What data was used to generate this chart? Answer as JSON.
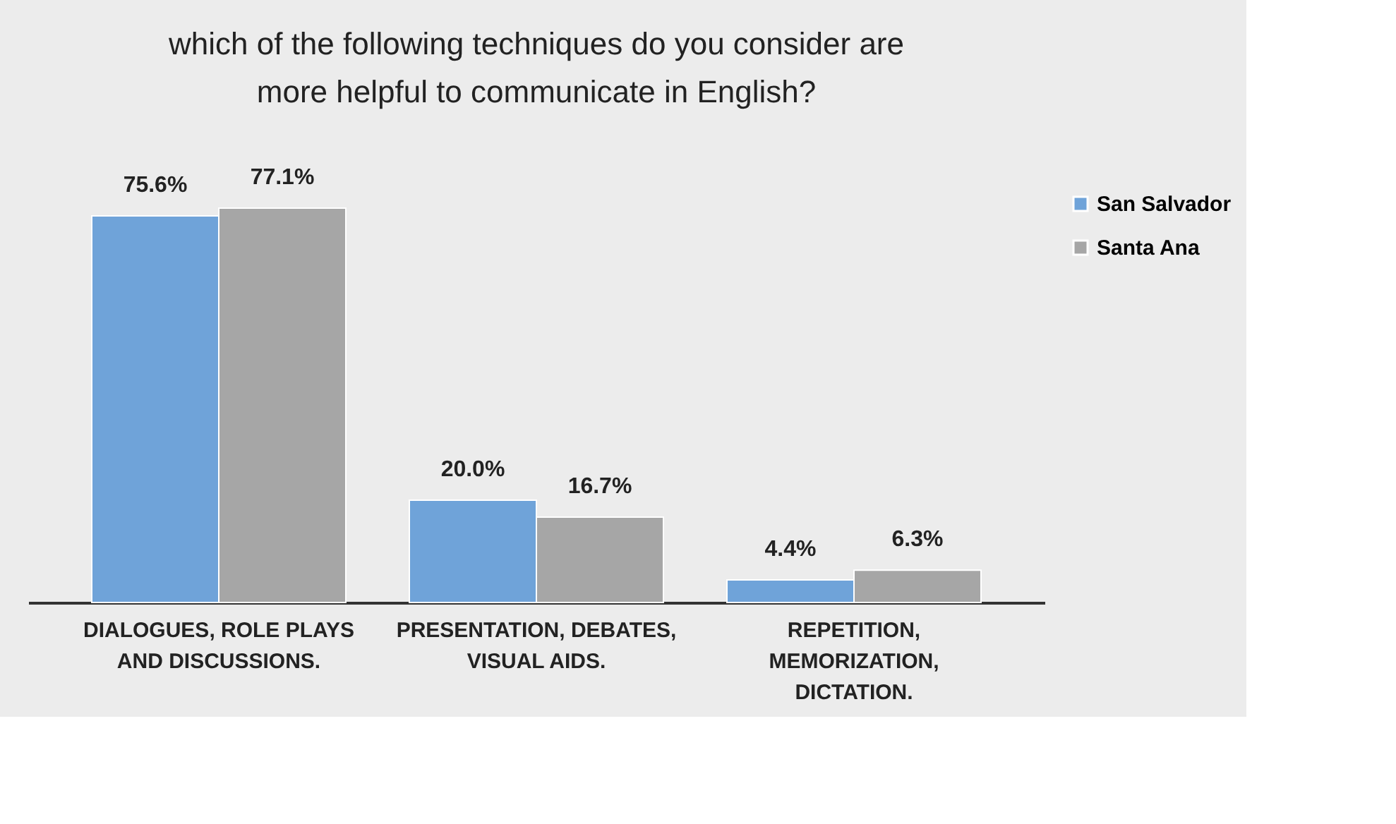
{
  "chart_data": {
    "type": "bar",
    "title": "which of the following techniques do you consider are more helpful to communicate in English?",
    "categories": [
      "DIALOGUES, ROLE PLAYS AND DISCUSSIONS.",
      "PRESENTATION, DEBATES,  VISUAL AIDS.",
      "REPETITION, MEMORIZATION, DICTATION."
    ],
    "series": [
      {
        "name": "San Salvador",
        "color": "#6fa3d9",
        "values": [
          75.6,
          20.0,
          4.4
        ],
        "value_labels": [
          "75.6%",
          "20.0%",
          "4.4%"
        ]
      },
      {
        "name": "Santa Ana",
        "color": "#a6a6a6",
        "values": [
          77.1,
          16.7,
          6.3
        ],
        "value_labels": [
          "77.1%",
          "16.7%",
          "6.3%"
        ]
      }
    ],
    "legend": "right",
    "grid": false
  }
}
